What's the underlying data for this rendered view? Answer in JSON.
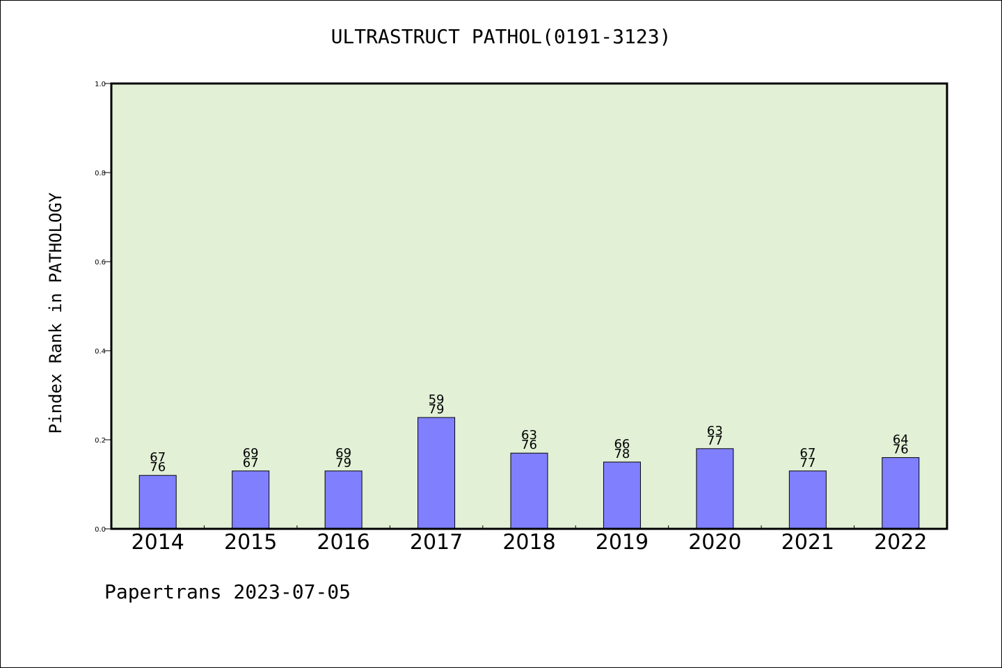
{
  "chart_data": {
    "type": "bar",
    "title": "ULTRASTRUCT PATHOL(0191-3123)",
    "ylabel": "Pindex Rank in PATHOLOGY",
    "xlabel": "",
    "ylim": [
      0.0,
      1.0
    ],
    "yticks": [
      "0.0",
      "0.2",
      "0.4",
      "0.6",
      "0.8",
      "1.0"
    ],
    "ytick_values": [
      0.0,
      0.2,
      0.4,
      0.6,
      0.8,
      1.0
    ],
    "categories": [
      "2014",
      "2015",
      "2016",
      "2017",
      "2018",
      "2019",
      "2020",
      "2021",
      "2022"
    ],
    "values": [
      0.12,
      0.13,
      0.13,
      0.25,
      0.17,
      0.15,
      0.18,
      0.13,
      0.16
    ],
    "labels_top": [
      "67",
      "69",
      "69",
      "59",
      "63",
      "66",
      "63",
      "67",
      "64"
    ],
    "labels_bottom": [
      "76",
      "67",
      "79",
      "79",
      "76",
      "78",
      "77",
      "77",
      "76"
    ],
    "bar_color": "#8080ff",
    "plot_background": "#e2f0d6",
    "grid": false,
    "legend": "none"
  },
  "footer": {
    "credit": "Papertrans 2023-07-05"
  }
}
